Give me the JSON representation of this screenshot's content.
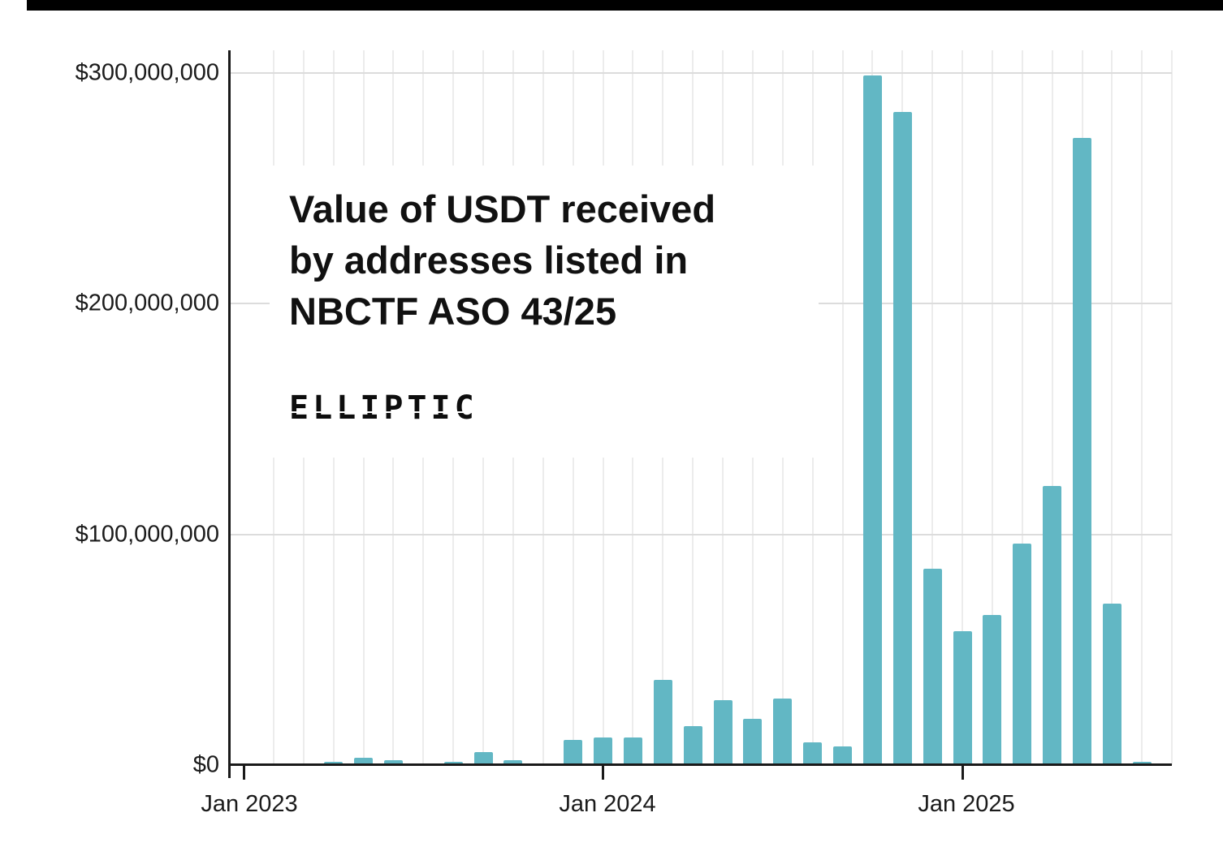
{
  "chart_data": {
    "type": "bar",
    "title": "Value of USDT received by addresses listed in NBCTF ASO 43/25",
    "title_lines": [
      "Value of USDT received",
      "by addresses listed in",
      "NBCTF ASO 43/25"
    ],
    "logo": "ELLIPTIC",
    "bar_color": "#62b7c4",
    "xlabel": "",
    "ylabel": "",
    "ylim": [
      0,
      300000000
    ],
    "grid": true,
    "legend": false,
    "y_ticks": [
      {
        "value": 0,
        "label": "$0"
      },
      {
        "value": 100000000,
        "label": "$100,000,000"
      },
      {
        "value": 200000000,
        "label": "$200,000,000"
      },
      {
        "value": 300000000,
        "label": "$300,000,000"
      }
    ],
    "x_ticks": [
      {
        "month_index": 0,
        "label": "Jan 2023"
      },
      {
        "month_index": 12,
        "label": "Jan 2024"
      },
      {
        "month_index": 24,
        "label": "Jan 2025"
      }
    ],
    "months": [
      "Jan 2023",
      "Feb 2023",
      "Mar 2023",
      "Apr 2023",
      "May 2023",
      "Jun 2023",
      "Jul 2023",
      "Aug 2023",
      "Sep 2023",
      "Oct 2023",
      "Nov 2023",
      "Dec 2023",
      "Jan 2024",
      "Feb 2024",
      "Mar 2024",
      "Apr 2024",
      "May 2024",
      "Jun 2024",
      "Jul 2024",
      "Aug 2024",
      "Sep 2024",
      "Oct 2024",
      "Nov 2024",
      "Dec 2024",
      "Jan 2025",
      "Feb 2025",
      "Mar 2025",
      "Apr 2025",
      "May 2025",
      "Jun 2025",
      "Jul 2025"
    ],
    "values": [
      0,
      0,
      0,
      1500000,
      3000000,
      2000000,
      0,
      1500000,
      5500000,
      2000000,
      0,
      11000000,
      12000000,
      12000000,
      37000000,
      17000000,
      28000000,
      20000000,
      29000000,
      10000000,
      8000000,
      299000000,
      283000000,
      85000000,
      58000000,
      65000000,
      96000000,
      121000000,
      272000000,
      70000000,
      1500000
    ]
  }
}
